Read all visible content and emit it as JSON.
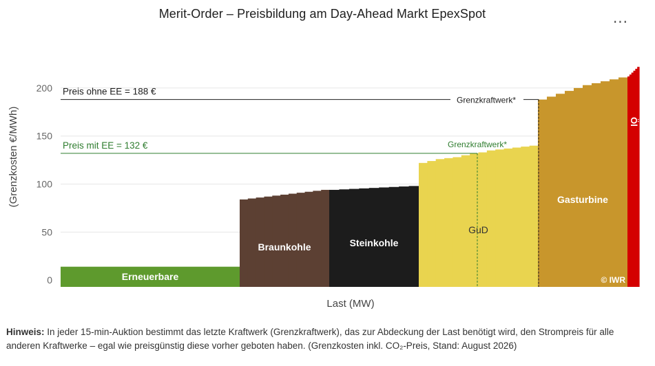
{
  "title": "Merit-Order – Preisbildung am Day-Ahead Markt EpexSpot",
  "menu_icon": "more-horizontal-icon",
  "menu_label": "...",
  "footnote": {
    "label": "Hinweis:",
    "text": "In jeder 15-min-Auktion bestimmt das letzte Kraftwerk (Grenzkraftwerk), das zur Abdeckung der Last benötigt wird, den Strompreis für alle anderen Kraftwerke – egal wie preisgünstig diese vorher geboten haben. (Grenzkosten inkl. CO₂-Preis, Stand: August 2026)"
  },
  "chart_data": {
    "type": "bar",
    "xlabel": "Last (MW)",
    "ylabel": "(Grenzkosten €/MWh)",
    "ylim": [
      -7,
      225
    ],
    "yticks": [
      0,
      50,
      100,
      150,
      200
    ],
    "grid": true,
    "watermark": "© IWR",
    "series": [
      {
        "name": "Erneuerbare",
        "color": "#5e9a2d",
        "label_color": "#ffffff",
        "values": [
          14
        ]
      },
      {
        "name": "Braunkohle",
        "color": "#5c4033",
        "label_color": "#ffffff",
        "values": [
          84,
          85,
          86,
          87,
          88,
          89,
          90,
          91,
          92,
          93,
          94
        ]
      },
      {
        "name": "Steinkohle",
        "color": "#1c1c1c",
        "label_color": "#ffffff",
        "values": [
          94,
          94.5,
          95,
          95.5,
          96,
          96.5,
          97,
          97.5,
          98
        ]
      },
      {
        "name": "GuD",
        "color": "#e9d44f",
        "label_color": "#333333",
        "values": [
          122,
          124,
          126,
          127,
          128,
          130,
          132,
          133,
          135,
          136,
          137,
          138,
          139,
          140
        ]
      },
      {
        "name": "Gasturbine",
        "color": "#c8962c",
        "label_color": "#ffffff",
        "values": [
          188,
          191,
          194,
          197,
          200,
          203,
          205,
          207,
          209,
          211
        ]
      },
      {
        "name": "Öl",
        "color": "#d40000",
        "label_color": "#ffffff",
        "values": [
          212,
          214,
          216,
          218,
          220,
          222
        ]
      }
    ],
    "annotations": [
      {
        "text": "Preis ohne EE = 188 €",
        "y": 188,
        "color": "#1e1e1e",
        "marginal_label": "Grenzkraftwerk*"
      },
      {
        "text": "Preis mit EE = 132 €",
        "y": 132,
        "color": "#2f7d2f",
        "marginal_label": "Grenzkraftwerk*"
      }
    ]
  }
}
